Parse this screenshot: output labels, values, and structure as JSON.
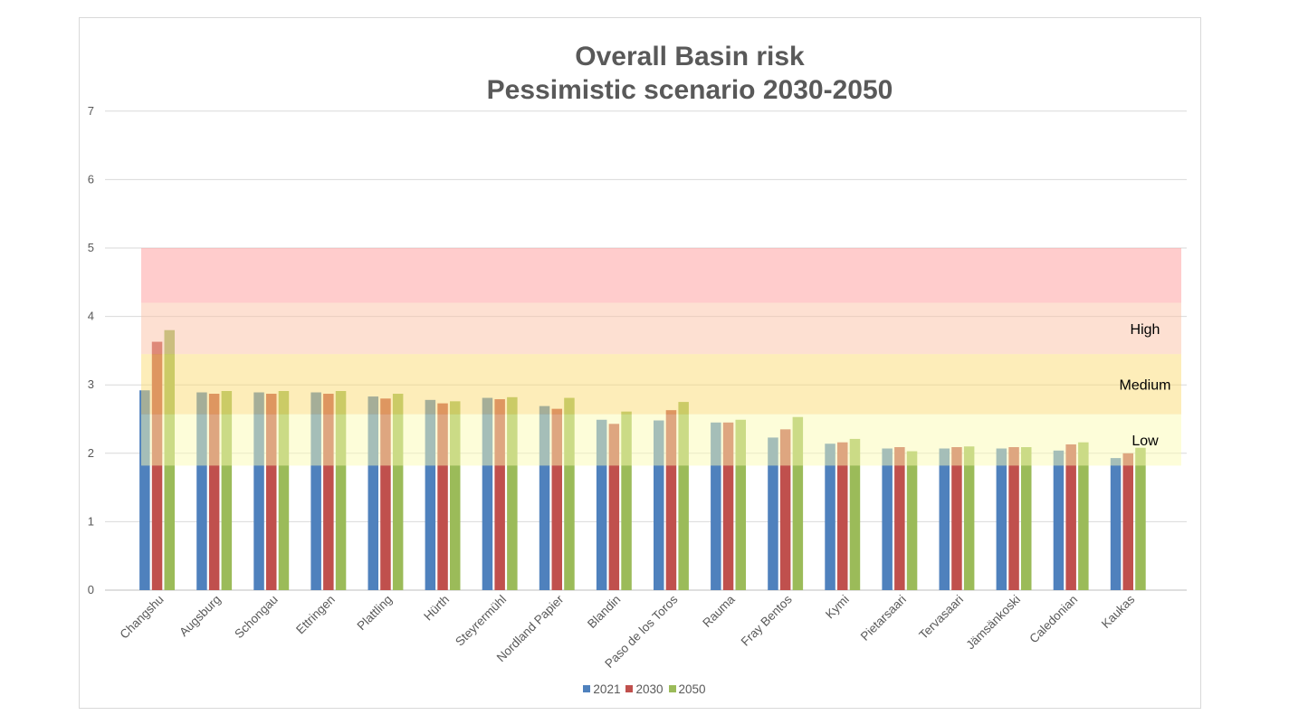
{
  "chart_data": {
    "type": "bar",
    "title_line1": "Overall Basin risk",
    "title_line2": "Pessimistic scenario 2030-2050",
    "xlabel": "",
    "ylabel": "",
    "ylim": [
      0,
      7
    ],
    "yticks": [
      "0",
      "1",
      "2",
      "3",
      "4",
      "5",
      "6",
      "7"
    ],
    "grid": true,
    "legend_position": "bottom",
    "categories": [
      "Changshu",
      "Augsburg",
      "Schongau",
      "Ettringen",
      "Plattling",
      "Hürth",
      "Steyrermühl",
      "Nordland Papier",
      "Blandin",
      "Paso de los Toros",
      "Rauma",
      "Fray Bentos",
      "Kymi",
      "Pietarsaari",
      "Tervasaari",
      "Jämsänkoski",
      "Caledonian",
      "Kaukas"
    ],
    "series": [
      {
        "name": "2021",
        "color": "#4f81bd",
        "values": [
          2.92,
          2.89,
          2.89,
          2.89,
          2.83,
          2.78,
          2.81,
          2.69,
          2.49,
          2.48,
          2.45,
          2.23,
          2.14,
          2.07,
          2.07,
          2.07,
          2.04,
          1.93
        ]
      },
      {
        "name": "2030",
        "color": "#c0504d",
        "values": [
          3.63,
          2.87,
          2.87,
          2.87,
          2.8,
          2.73,
          2.79,
          2.65,
          2.43,
          2.63,
          2.45,
          2.35,
          2.16,
          2.09,
          2.09,
          2.09,
          2.13,
          2.0
        ]
      },
      {
        "name": "2050",
        "color": "#9bbb59",
        "values": [
          3.8,
          2.91,
          2.91,
          2.91,
          2.87,
          2.76,
          2.82,
          2.81,
          2.61,
          2.75,
          2.49,
          2.53,
          2.21,
          2.03,
          2.1,
          2.09,
          2.16,
          2.08
        ]
      }
    ],
    "risk_bands": [
      {
        "label": "",
        "from": 4.2,
        "to": 5.0,
        "color": "#ff9999"
      },
      {
        "label": "High",
        "from": 3.45,
        "to": 4.2,
        "color": "#fbc2a6"
      },
      {
        "label": "Medium",
        "from": 2.57,
        "to": 3.45,
        "color": "#fcdb74"
      },
      {
        "label": "Low",
        "from": 1.82,
        "to": 2.57,
        "color": "#fcfcb4"
      }
    ]
  }
}
